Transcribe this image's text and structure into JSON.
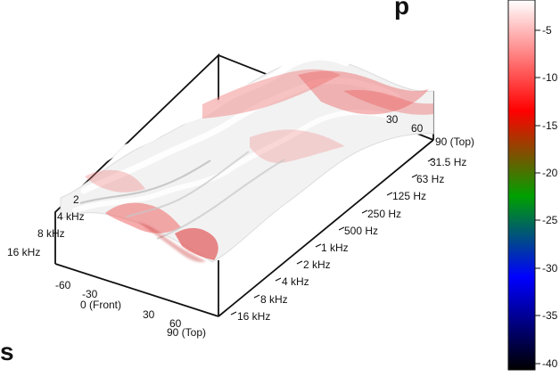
{
  "chart_data": {
    "type": "surface",
    "title_fragment": "p",
    "side_letter": "s",
    "angle_axis": {
      "ticks": [
        "-60",
        "-30",
        "0 (Front)",
        "30",
        "60",
        "90 (Top)"
      ]
    },
    "frequency_axis": {
      "ticks": [
        "31.5 Hz",
        "63 Hz",
        "125 Hz",
        "250 Hz",
        "500 Hz",
        "1 kHz",
        "2 kHz",
        "4 kHz",
        "8 kHz",
        "16 kHz"
      ]
    },
    "back_wall_frequency_ticks": [
      "2",
      "4 kHz",
      "8 kHz",
      "16 kHz"
    ],
    "back_wall_angle_ticks": [
      "30",
      "60",
      "90 (Top)"
    ],
    "colorbar": {
      "ticks": [
        "-5",
        "-10",
        "-15",
        "-20",
        "-25",
        "-30",
        "-35",
        "-40"
      ],
      "range": [
        -40,
        0
      ],
      "colors": [
        "#ffffff",
        "#ff0000",
        "#00a000",
        "#0000ff",
        "#000000"
      ]
    }
  }
}
